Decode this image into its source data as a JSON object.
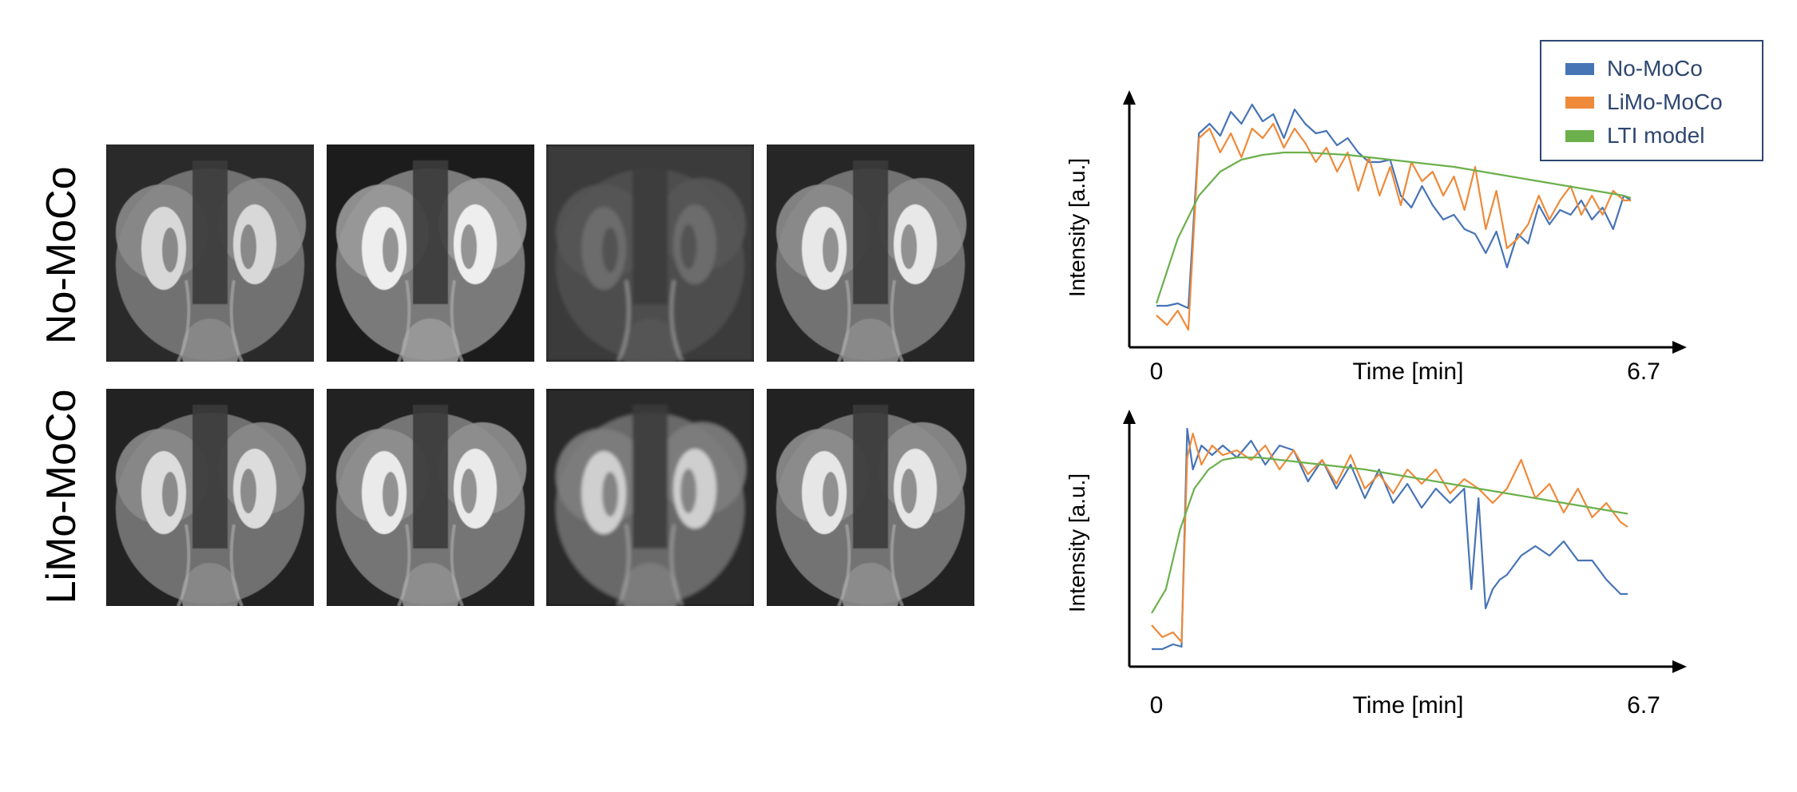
{
  "row_labels": [
    "No-MoCo",
    "LiMo-MoCo"
  ],
  "legend": [
    {
      "name": "No-MoCo",
      "color": "#4774b5"
    },
    {
      "name": "LiMo-MoCo",
      "color": "#ee8a3a"
    },
    {
      "name": "LTI model",
      "color": "#6cb04d"
    }
  ],
  "chart_data": [
    {
      "type": "line",
      "title": "",
      "xlabel": "Time [min]",
      "ylabel": "Intensity [a.u.]",
      "xlim": [
        0,
        6.7
      ],
      "ylim": [
        0,
        1
      ],
      "x_tick_labels": [
        "0",
        "6.7"
      ],
      "series": [
        {
          "name": "No-MoCo",
          "color": "#4774b5",
          "x": [
            0,
            0.15,
            0.3,
            0.45,
            0.6,
            0.75,
            0.9,
            1.05,
            1.2,
            1.35,
            1.5,
            1.65,
            1.8,
            1.95,
            2.1,
            2.25,
            2.4,
            2.55,
            2.7,
            2.85,
            3.0,
            3.15,
            3.3,
            3.45,
            3.6,
            3.75,
            3.9,
            4.05,
            4.2,
            4.35,
            4.5,
            4.65,
            4.8,
            4.95,
            5.1,
            5.25,
            5.4,
            5.55,
            5.7,
            5.85,
            6.0,
            6.15,
            6.3,
            6.45,
            6.6,
            6.7
          ],
          "values": [
            0.14,
            0.14,
            0.15,
            0.13,
            0.86,
            0.9,
            0.85,
            0.95,
            0.9,
            0.98,
            0.91,
            0.94,
            0.84,
            0.96,
            0.9,
            0.86,
            0.87,
            0.81,
            0.84,
            0.78,
            0.74,
            0.74,
            0.75,
            0.6,
            0.55,
            0.64,
            0.56,
            0.5,
            0.52,
            0.46,
            0.44,
            0.36,
            0.45,
            0.3,
            0.44,
            0.4,
            0.56,
            0.48,
            0.54,
            0.52,
            0.58,
            0.5,
            0.55,
            0.46,
            0.6,
            0.58
          ]
        },
        {
          "name": "LiMo-MoCo",
          "color": "#ee8a3a",
          "x": [
            0,
            0.15,
            0.3,
            0.45,
            0.6,
            0.75,
            0.9,
            1.05,
            1.2,
            1.35,
            1.5,
            1.65,
            1.8,
            1.95,
            2.1,
            2.25,
            2.4,
            2.55,
            2.7,
            2.85,
            3.0,
            3.15,
            3.3,
            3.45,
            3.6,
            3.75,
            3.9,
            4.05,
            4.2,
            4.35,
            4.5,
            4.65,
            4.8,
            4.95,
            5.1,
            5.25,
            5.4,
            5.55,
            5.7,
            5.85,
            6.0,
            6.15,
            6.3,
            6.45,
            6.6,
            6.7
          ],
          "values": [
            0.1,
            0.06,
            0.12,
            0.04,
            0.84,
            0.88,
            0.78,
            0.86,
            0.76,
            0.88,
            0.84,
            0.9,
            0.8,
            0.88,
            0.82,
            0.74,
            0.8,
            0.7,
            0.78,
            0.62,
            0.76,
            0.6,
            0.72,
            0.56,
            0.74,
            0.66,
            0.7,
            0.6,
            0.68,
            0.54,
            0.72,
            0.46,
            0.62,
            0.38,
            0.42,
            0.48,
            0.6,
            0.5,
            0.58,
            0.64,
            0.52,
            0.6,
            0.52,
            0.62,
            0.58,
            0.58
          ]
        },
        {
          "name": "LTI model",
          "color": "#6cb04d",
          "x": [
            0,
            0.3,
            0.6,
            0.9,
            1.2,
            1.5,
            1.8,
            2.1,
            2.4,
            2.7,
            3.0,
            3.3,
            3.6,
            3.9,
            4.2,
            4.5,
            4.8,
            5.1,
            5.4,
            5.7,
            6.0,
            6.3,
            6.6,
            6.7
          ],
          "values": [
            0.15,
            0.42,
            0.6,
            0.7,
            0.75,
            0.77,
            0.78,
            0.78,
            0.775,
            0.77,
            0.76,
            0.75,
            0.74,
            0.73,
            0.72,
            0.705,
            0.69,
            0.675,
            0.66,
            0.645,
            0.63,
            0.615,
            0.6,
            0.59
          ]
        }
      ]
    },
    {
      "type": "line",
      "title": "",
      "xlabel": "Time [min]",
      "ylabel": "Intensity [a.u.]",
      "xlim": [
        0,
        6.7
      ],
      "ylim": [
        0,
        1
      ],
      "x_tick_labels": [
        "0",
        "6.7"
      ],
      "series": [
        {
          "name": "No-MoCo",
          "color": "#4774b5",
          "x": [
            0,
            0.15,
            0.3,
            0.42,
            0.5,
            0.58,
            0.7,
            0.85,
            1.0,
            1.2,
            1.4,
            1.6,
            1.8,
            2.0,
            2.2,
            2.4,
            2.6,
            2.8,
            3.0,
            3.2,
            3.4,
            3.6,
            3.8,
            4.0,
            4.2,
            4.4,
            4.5,
            4.6,
            4.7,
            4.8,
            4.9,
            5.0,
            5.2,
            5.4,
            5.6,
            5.8,
            6.0,
            6.2,
            6.4,
            6.6,
            6.7
          ],
          "values": [
            0.05,
            0.05,
            0.07,
            0.06,
            0.97,
            0.8,
            0.9,
            0.86,
            0.9,
            0.85,
            0.92,
            0.82,
            0.9,
            0.88,
            0.75,
            0.84,
            0.72,
            0.82,
            0.68,
            0.8,
            0.66,
            0.74,
            0.64,
            0.72,
            0.66,
            0.72,
            0.3,
            0.68,
            0.22,
            0.3,
            0.34,
            0.36,
            0.44,
            0.48,
            0.44,
            0.5,
            0.42,
            0.42,
            0.34,
            0.28,
            0.28
          ]
        },
        {
          "name": "LiMo-MoCo",
          "color": "#ee8a3a",
          "x": [
            0,
            0.15,
            0.3,
            0.42,
            0.5,
            0.58,
            0.7,
            0.85,
            1.0,
            1.2,
            1.4,
            1.6,
            1.8,
            2.0,
            2.2,
            2.4,
            2.6,
            2.8,
            3.0,
            3.2,
            3.4,
            3.6,
            3.8,
            4.0,
            4.2,
            4.4,
            4.6,
            4.8,
            5.0,
            5.2,
            5.4,
            5.6,
            5.8,
            6.0,
            6.2,
            6.4,
            6.6,
            6.7
          ],
          "values": [
            0.15,
            0.1,
            0.12,
            0.08,
            0.85,
            0.95,
            0.82,
            0.9,
            0.86,
            0.88,
            0.84,
            0.9,
            0.8,
            0.88,
            0.78,
            0.84,
            0.74,
            0.86,
            0.72,
            0.78,
            0.7,
            0.8,
            0.74,
            0.8,
            0.7,
            0.76,
            0.72,
            0.66,
            0.72,
            0.84,
            0.68,
            0.74,
            0.62,
            0.72,
            0.6,
            0.66,
            0.58,
            0.56
          ]
        },
        {
          "name": "LTI model",
          "color": "#6cb04d",
          "x": [
            0,
            0.2,
            0.4,
            0.6,
            0.8,
            1.0,
            1.2,
            1.5,
            1.8,
            2.1,
            2.4,
            2.7,
            3.0,
            3.3,
            3.6,
            3.9,
            4.2,
            4.5,
            4.8,
            5.1,
            5.4,
            5.7,
            6.0,
            6.3,
            6.6,
            6.7
          ],
          "values": [
            0.2,
            0.3,
            0.55,
            0.72,
            0.8,
            0.84,
            0.85,
            0.85,
            0.84,
            0.83,
            0.82,
            0.81,
            0.8,
            0.785,
            0.77,
            0.755,
            0.74,
            0.725,
            0.71,
            0.695,
            0.68,
            0.665,
            0.65,
            0.635,
            0.62,
            0.615
          ]
        }
      ]
    }
  ]
}
